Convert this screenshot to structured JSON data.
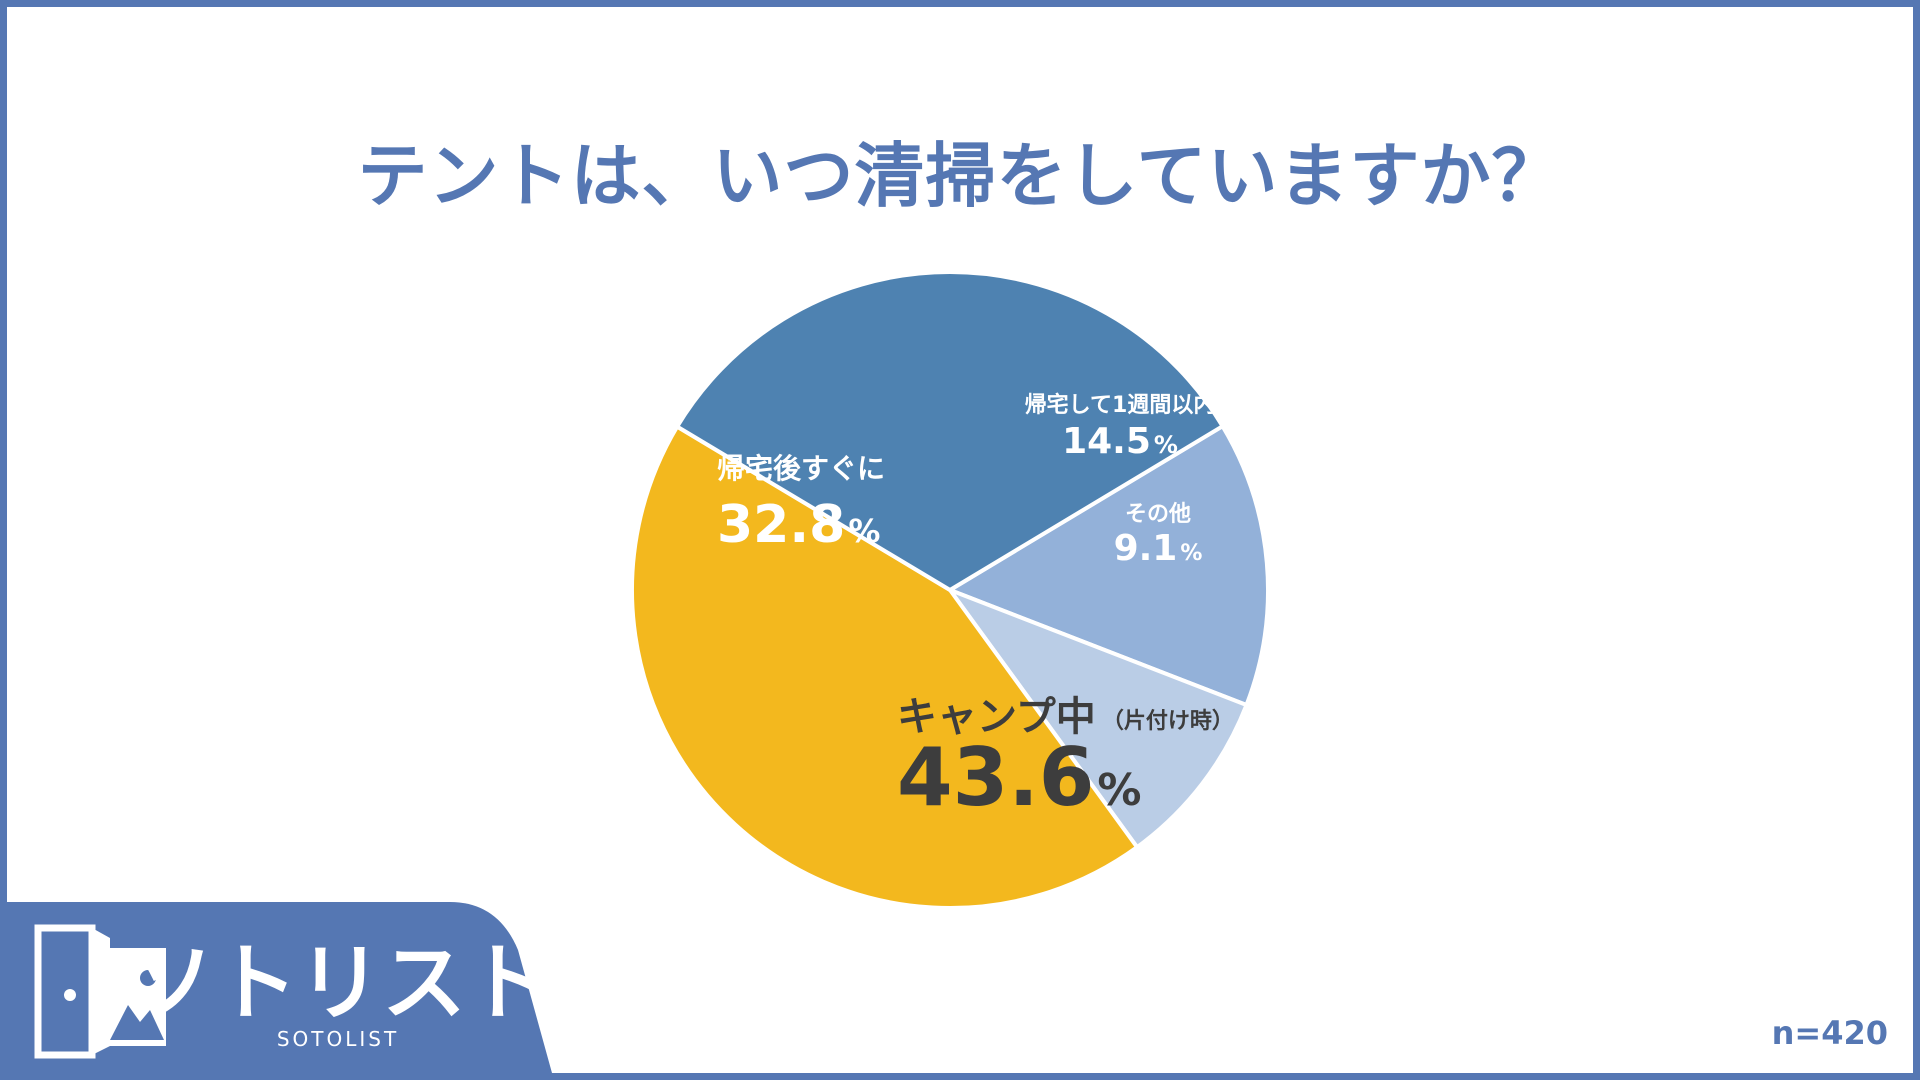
{
  "chart_data": {
    "type": "pie",
    "title": "テントは、いつ清掃をしていますか？",
    "slices": [
      {
        "name": "帰宅して1週間以内",
        "value": 14.5,
        "display": "14.5",
        "color": "#93b1d9",
        "text_color": "#ffffff"
      },
      {
        "name": "その他",
        "value": 9.1,
        "display": "9.1",
        "color": "#bacde6",
        "text_color": "#ffffff"
      },
      {
        "name": "キャンプ中",
        "suffix": "（片付け時）",
        "value": 43.6,
        "display": "43.6",
        "color": "#f3b81e",
        "text_color": "#3d3d3d"
      },
      {
        "name": "帰宅後すぐに",
        "value": 32.8,
        "display": "32.8",
        "color": "#4e82b1",
        "text_color": "#ffffff"
      }
    ],
    "percent_symbol": "%",
    "start_angle": "about 2 o'clock, clockwise",
    "legend": "none (labels inside slices)"
  },
  "footer": {
    "sample_size": "n=420",
    "logo_text": "ソトリスト",
    "logo_subtext": "SOTOLIST"
  },
  "colors": {
    "frame": "#5577b3",
    "title": "#5577b3",
    "logo_bg": "#5577b3"
  }
}
